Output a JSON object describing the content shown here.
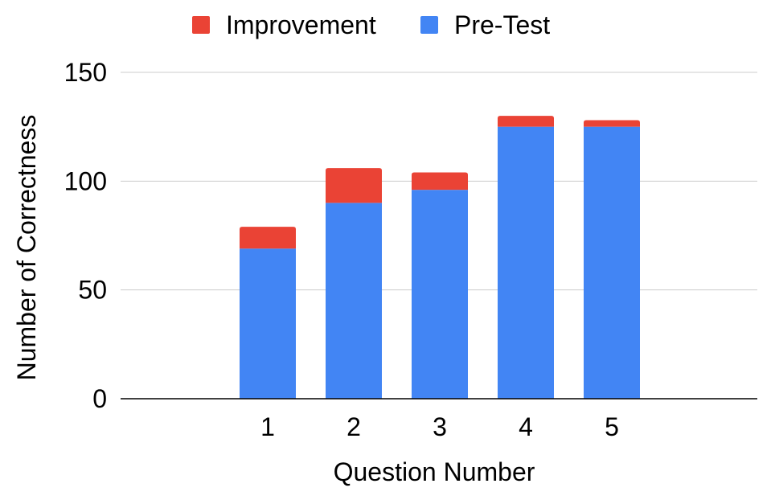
{
  "chart_data": {
    "type": "bar",
    "stacked": true,
    "categories": [
      "1",
      "2",
      "3",
      "4",
      "5"
    ],
    "series": [
      {
        "name": "Pre-Test",
        "color": "#4285F4",
        "values": [
          69,
          90,
          96,
          125,
          125
        ]
      },
      {
        "name": "Improvement",
        "color": "#EA4335",
        "values": [
          10,
          16,
          8,
          5,
          3
        ]
      }
    ],
    "legend_order": [
      "Improvement",
      "Pre-Test"
    ],
    "legend_position": "top",
    "xlabel": "Question Number",
    "ylabel": "Number of Correctness",
    "ylim": [
      0,
      150
    ],
    "yticks": [
      "0",
      "50",
      "100",
      "150"
    ],
    "grid": true
  }
}
